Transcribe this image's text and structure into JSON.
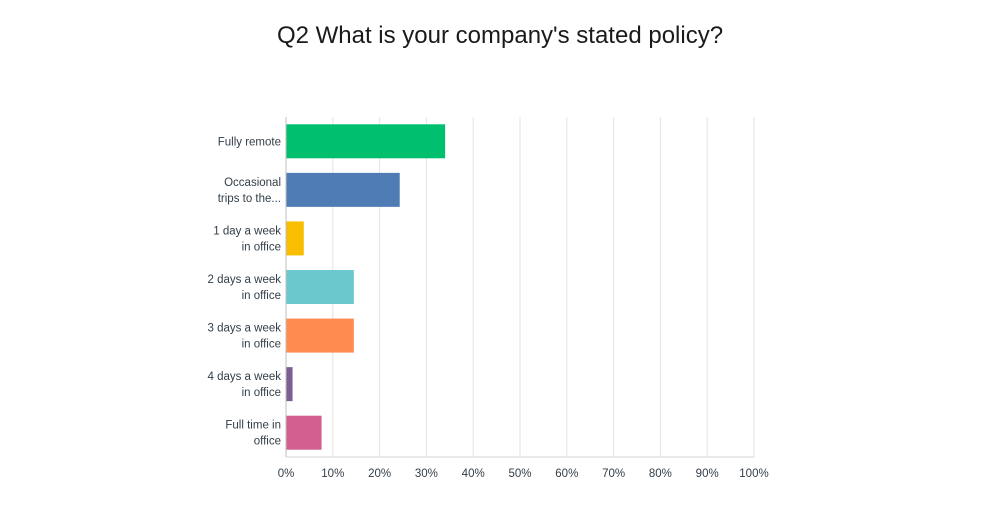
{
  "title": "Q2 What is your company's stated policy?",
  "chart_data": {
    "type": "bar",
    "orientation": "horizontal",
    "title": "Q2 What is your company's stated policy?",
    "categories": [
      [
        "Fully remote"
      ],
      [
        "Occasional",
        "trips to the..."
      ],
      [
        "1 day a week",
        "in office"
      ],
      [
        "2 days a week",
        "in office"
      ],
      [
        "3 days a week",
        "in office"
      ],
      [
        "4 days a week",
        "in office"
      ],
      [
        "Full time in",
        "office"
      ]
    ],
    "values": [
      34,
      24.3,
      3.8,
      14.5,
      14.5,
      1.4,
      7.6
    ],
    "colors": [
      "#00bf6f",
      "#507cb6",
      "#f9be00",
      "#6bc8cd",
      "#ff8b4f",
      "#7d5e90",
      "#d25f90"
    ],
    "xlim": [
      0,
      100
    ],
    "xticks": [
      "0%",
      "10%",
      "20%",
      "30%",
      "40%",
      "50%",
      "60%",
      "70%",
      "80%",
      "90%",
      "100%"
    ],
    "grid": true,
    "xlabel": "",
    "ylabel": ""
  }
}
